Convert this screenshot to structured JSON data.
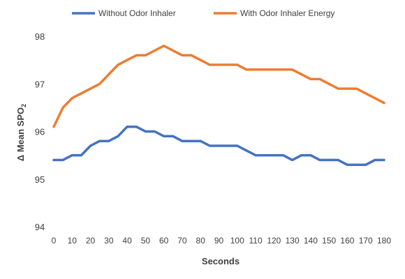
{
  "chart_data": {
    "type": "line",
    "xlabel": "Seconds",
    "ylabel": "Δ Mean SPO",
    "ylabel_subscript": "2",
    "x": [
      0,
      5,
      10,
      15,
      20,
      25,
      30,
      35,
      40,
      45,
      50,
      55,
      60,
      65,
      70,
      75,
      80,
      85,
      90,
      95,
      100,
      105,
      110,
      115,
      120,
      125,
      130,
      135,
      140,
      145,
      150,
      155,
      160,
      165,
      170,
      175,
      180
    ],
    "xticks": [
      0,
      10,
      20,
      30,
      40,
      50,
      60,
      70,
      80,
      90,
      100,
      110,
      120,
      130,
      140,
      150,
      160,
      170,
      180
    ],
    "yticks": [
      94,
      95,
      96,
      97,
      98
    ],
    "ylim": [
      94,
      98.2
    ],
    "xlim": [
      0,
      180
    ],
    "grid": false,
    "legend_position": "top",
    "series": [
      {
        "name": "Without Odor Inhaler",
        "color": "#4472C4",
        "values": [
          95.4,
          95.4,
          95.5,
          95.5,
          95.7,
          95.8,
          95.8,
          95.9,
          96.1,
          96.1,
          96.0,
          96.0,
          95.9,
          95.9,
          95.8,
          95.8,
          95.8,
          95.7,
          95.7,
          95.7,
          95.7,
          95.6,
          95.5,
          95.5,
          95.5,
          95.5,
          95.4,
          95.5,
          95.5,
          95.4,
          95.4,
          95.4,
          95.3,
          95.3,
          95.3,
          95.4,
          95.4
        ]
      },
      {
        "name": "With Odor Inhaler Energy",
        "color": "#ED7D31",
        "values": [
          96.1,
          96.5,
          96.7,
          96.8,
          96.9,
          97.0,
          97.2,
          97.4,
          97.5,
          97.6,
          97.6,
          97.7,
          97.8,
          97.7,
          97.6,
          97.6,
          97.5,
          97.4,
          97.4,
          97.4,
          97.4,
          97.3,
          97.3,
          97.3,
          97.3,
          97.3,
          97.3,
          97.2,
          97.1,
          97.1,
          97.0,
          96.9,
          96.9,
          96.9,
          96.8,
          96.7,
          96.6
        ]
      }
    ]
  }
}
